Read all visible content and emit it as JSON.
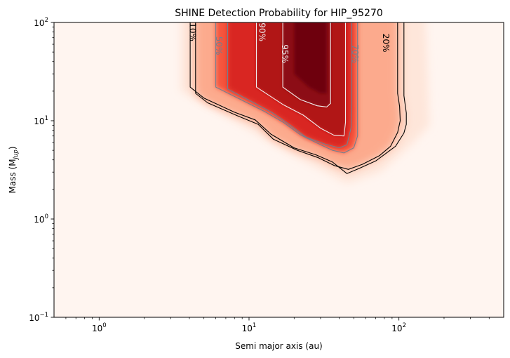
{
  "chart_data": {
    "type": "heatmap",
    "title": "SHINE Detection Probability for HIP_95270",
    "xlabel": "Semi major axis (au)",
    "ylabel_prefix": "Mass (M",
    "ylabel_sub": "Jup",
    "ylabel_suffix": ")",
    "x_scale": "log",
    "y_scale": "log",
    "xlim": [
      0.5,
      500
    ],
    "ylim": [
      0.1,
      100
    ],
    "x_ticks": [
      {
        "value": 1,
        "base": "10",
        "exp": "0"
      },
      {
        "value": 10,
        "base": "10",
        "exp": "1"
      },
      {
        "value": 100,
        "base": "10",
        "exp": "2"
      }
    ],
    "y_ticks": [
      {
        "value": 0.1,
        "base": "10",
        "exp": "−1"
      },
      {
        "value": 1,
        "base": "10",
        "exp": "0"
      },
      {
        "value": 10,
        "base": "10",
        "exp": "1"
      },
      {
        "value": 100,
        "base": "10",
        "exp": "2"
      }
    ],
    "colormap": "Reds",
    "contour_levels": [
      {
        "level": 10,
        "label": "10%",
        "color": "#000000",
        "label_at": [
          4.2,
          80
        ]
      },
      {
        "level": 20,
        "label": "20%",
        "color": "#000000",
        "label_at": [
          82,
          62
        ]
      },
      {
        "level": 50,
        "label": "50%",
        "color": "#708090",
        "label_at": [
          6.3,
          58
        ]
      },
      {
        "level": 70,
        "label": "70%",
        "color": "#708090",
        "label_at": [
          51,
          48
        ]
      },
      {
        "level": 90,
        "label": "90%",
        "color": "#f0f0f0",
        "label_at": [
          12.2,
          80
        ]
      },
      {
        "level": 95,
        "label": "95%",
        "color": "#f0f0f0",
        "label_at": [
          17.3,
          48
        ]
      }
    ],
    "grid": false,
    "colorbar": false
  }
}
